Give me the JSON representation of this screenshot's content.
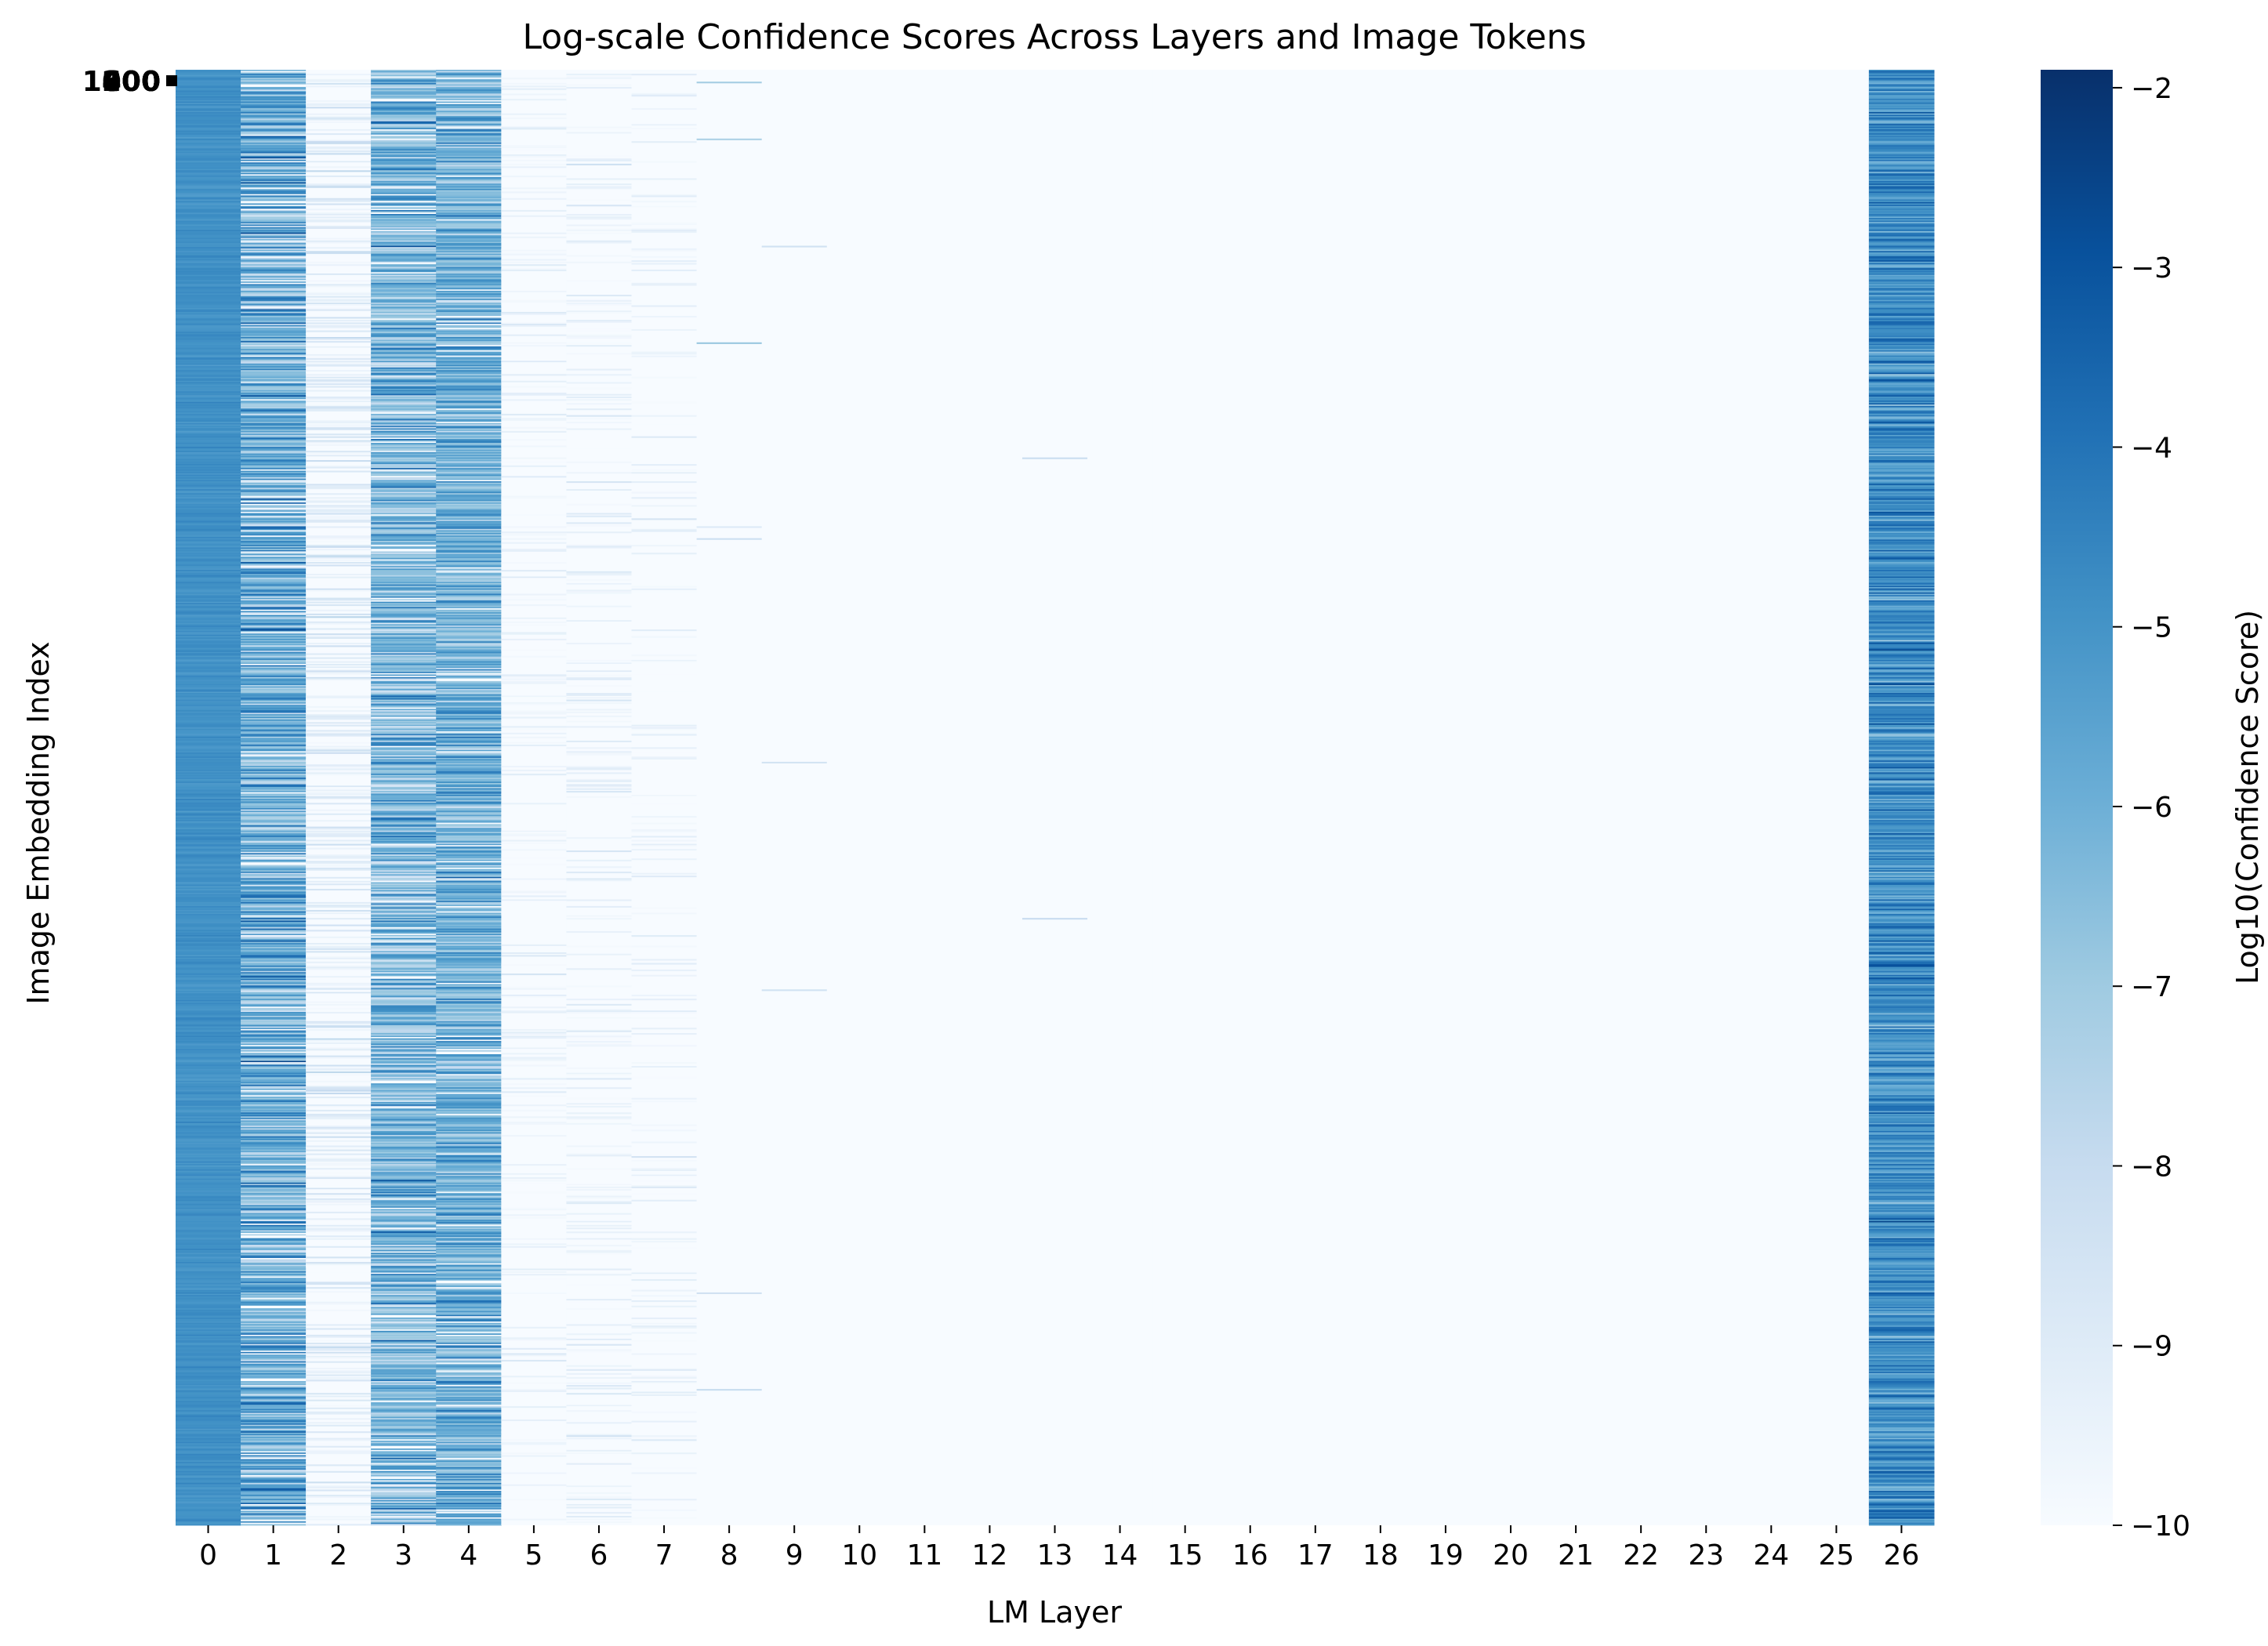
{
  "chart_data": {
    "type": "heatmap",
    "title": "Log-scale Confidence Scores Across Layers and Image Tokens",
    "xlabel": "LM Layer",
    "ylabel": "Image Embedding Index",
    "x_tick_labels": [
      "0",
      "1",
      "2",
      "3",
      "4",
      "5",
      "6",
      "7",
      "8",
      "9",
      "10",
      "11",
      "12",
      "13",
      "14",
      "15",
      "16",
      "17",
      "18",
      "19",
      "20",
      "21",
      "22",
      "23",
      "24",
      "25",
      "26"
    ],
    "y_tick_labels_overlapping": [
      "1000",
      "800",
      "600",
      "400",
      "200"
    ],
    "colorbar": {
      "label": "Log10(Confidence Score)",
      "colormap": "Blues",
      "range": [
        -10,
        -1.9
      ],
      "ticks": [
        -2,
        -3,
        -4,
        -5,
        -6,
        -7,
        -8,
        -9,
        -10
      ],
      "tick_labels": [
        "−2",
        "−3",
        "−4",
        "−5",
        "−6",
        "−7",
        "−8",
        "−9",
        "−10"
      ]
    },
    "approx_num_rows": 1100,
    "layer_profiles": [
      {
        "layer": 0,
        "mean": -4.9,
        "spread": 0.25,
        "floor_prob": 0.0
      },
      {
        "layer": 1,
        "mean": -5.9,
        "spread": 1.8,
        "floor_prob": 0.06
      },
      {
        "layer": 2,
        "mean": -9.3,
        "spread": 0.9,
        "floor_prob": 0.55
      },
      {
        "layer": 3,
        "mean": -6.3,
        "spread": 1.7,
        "floor_prob": 0.05
      },
      {
        "layer": 4,
        "mean": -6.0,
        "spread": 1.4,
        "floor_prob": 0.05
      },
      {
        "layer": 5,
        "mean": -9.7,
        "spread": 0.6,
        "floor_prob": 0.75
      },
      {
        "layer": 6,
        "mean": -9.6,
        "spread": 0.7,
        "floor_prob": 0.72
      },
      {
        "layer": 7,
        "mean": -9.7,
        "spread": 0.6,
        "floor_prob": 0.8
      },
      {
        "layer": 8,
        "mean": -10.0,
        "spread": 0.0,
        "floor_prob": 0.995
      },
      {
        "layer": 9,
        "mean": -10.0,
        "spread": 0.0,
        "floor_prob": 0.995
      },
      {
        "layer": 10,
        "mean": -10.0,
        "spread": 0.0,
        "floor_prob": 1.0
      },
      {
        "layer": 11,
        "mean": -10.0,
        "spread": 0.0,
        "floor_prob": 1.0
      },
      {
        "layer": 12,
        "mean": -10.0,
        "spread": 0.0,
        "floor_prob": 1.0
      },
      {
        "layer": 13,
        "mean": -10.0,
        "spread": 0.0,
        "floor_prob": 0.998
      },
      {
        "layer": 14,
        "mean": -10.0,
        "spread": 0.0,
        "floor_prob": 1.0
      },
      {
        "layer": 15,
        "mean": -10.0,
        "spread": 0.0,
        "floor_prob": 1.0
      },
      {
        "layer": 16,
        "mean": -10.0,
        "spread": 0.0,
        "floor_prob": 1.0
      },
      {
        "layer": 17,
        "mean": -10.0,
        "spread": 0.0,
        "floor_prob": 1.0
      },
      {
        "layer": 18,
        "mean": -10.0,
        "spread": 0.0,
        "floor_prob": 1.0
      },
      {
        "layer": 19,
        "mean": -10.0,
        "spread": 0.0,
        "floor_prob": 1.0
      },
      {
        "layer": 20,
        "mean": -10.0,
        "spread": 0.0,
        "floor_prob": 1.0
      },
      {
        "layer": 21,
        "mean": -10.0,
        "spread": 0.0,
        "floor_prob": 1.0
      },
      {
        "layer": 22,
        "mean": -10.0,
        "spread": 0.0,
        "floor_prob": 1.0
      },
      {
        "layer": 23,
        "mean": -10.0,
        "spread": 0.0,
        "floor_prob": 1.0
      },
      {
        "layer": 24,
        "mean": -10.0,
        "spread": 0.0,
        "floor_prob": 1.0
      },
      {
        "layer": 25,
        "mean": -10.0,
        "spread": 0.0,
        "floor_prob": 1.0
      },
      {
        "layer": 26,
        "mean": -4.8,
        "spread": 1.2,
        "floor_prob": 0.0
      }
    ]
  }
}
